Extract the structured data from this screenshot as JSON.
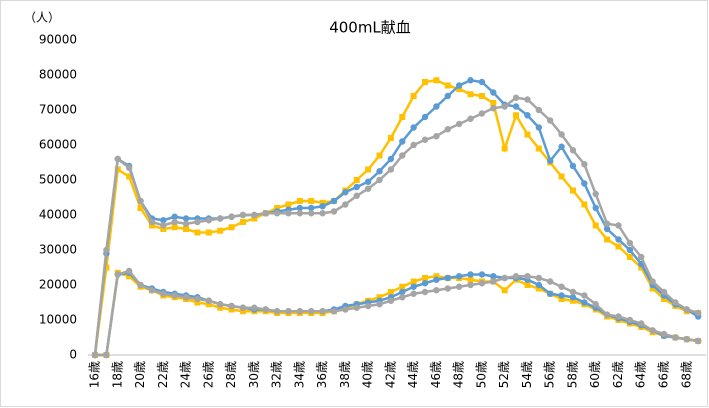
{
  "chart_data": {
    "type": "line",
    "title": "400mL献血",
    "y_label": "（人）",
    "categories": [
      "16歳",
      null,
      "18歳",
      null,
      "20歳",
      null,
      "22歳",
      null,
      "24歳",
      null,
      "26歳",
      null,
      "28歳",
      null,
      "30歳",
      null,
      "32歳",
      null,
      "34歳",
      null,
      "36歳",
      null,
      "38歳",
      null,
      "40歳",
      null,
      "42歳",
      null,
      "44歳",
      null,
      "46歳",
      null,
      "48歳",
      null,
      "50歳",
      null,
      "52歳",
      null,
      "54歳",
      null,
      "56歳",
      null,
      "58歳",
      null,
      "60歳",
      null,
      "62歳",
      null,
      "64歳",
      null,
      "66歳",
      null,
      "68歳",
      null
    ],
    "ylim": [
      0,
      90000
    ],
    "yticks": [
      0,
      10000,
      20000,
      30000,
      40000,
      50000,
      60000,
      70000,
      80000,
      90000
    ],
    "grid": false,
    "series": [
      {
        "color": "#FFC000",
        "marker": "square",
        "values": [
          0,
          25000,
          53000,
          51000,
          42000,
          37000,
          36000,
          36500,
          36000,
          35000,
          35000,
          35500,
          36500,
          38000,
          39000,
          40500,
          42000,
          43000,
          44000,
          44000,
          43500,
          44000,
          47000,
          50000,
          53000,
          57000,
          62000,
          68000,
          74000,
          78000,
          78500,
          77000,
          76000,
          74500,
          74000,
          72000,
          59000,
          68500,
          63000,
          59000,
          55000,
          51000,
          47000,
          43000,
          37000,
          33000,
          31000,
          28000,
          25000,
          19000,
          16000,
          14000,
          12500,
          12000
        ]
      },
      {
        "color": "#5B9BD5",
        "marker": "circle",
        "values": [
          0,
          29000,
          56000,
          54000,
          44000,
          39000,
          38500,
          39500,
          39000,
          39000,
          39000,
          39000,
          39500,
          40000,
          40000,
          40500,
          41000,
          41500,
          42000,
          42000,
          42500,
          44000,
          46500,
          48000,
          49500,
          52500,
          56000,
          61000,
          65000,
          68000,
          71000,
          74000,
          77000,
          78500,
          78000,
          75000,
          71500,
          71000,
          68500,
          65000,
          55500,
          59500,
          54000,
          49000,
          42000,
          36000,
          33000,
          30000,
          26000,
          20000,
          17000,
          14500,
          13000,
          11000
        ]
      },
      {
        "color": "#A5A5A5",
        "marker": "circle",
        "values": [
          0,
          30000,
          56000,
          53500,
          44000,
          38000,
          37000,
          38000,
          37500,
          38000,
          38500,
          39000,
          39500,
          40000,
          40000,
          40500,
          40500,
          40500,
          40500,
          40500,
          40500,
          41000,
          43000,
          45500,
          47500,
          50000,
          53000,
          57000,
          60000,
          61500,
          62500,
          64500,
          66000,
          67500,
          69000,
          70500,
          71000,
          73500,
          73000,
          70000,
          67000,
          63000,
          58500,
          54500,
          46000,
          37500,
          37000,
          32000,
          28000,
          21000,
          18000,
          15000,
          13000,
          12000
        ]
      },
      {
        "color": "#FFC000",
        "marker": "square",
        "values": [
          0,
          0,
          23500,
          22500,
          19500,
          18500,
          17000,
          16500,
          16000,
          15000,
          14500,
          13500,
          13000,
          12500,
          12500,
          12500,
          12000,
          12000,
          12000,
          12000,
          12000,
          12500,
          13500,
          14500,
          15500,
          16500,
          18000,
          19500,
          21000,
          22000,
          22500,
          22000,
          22000,
          21500,
          21000,
          21000,
          18500,
          21500,
          20000,
          19000,
          17500,
          16000,
          15500,
          14500,
          13000,
          11000,
          10000,
          9000,
          8000,
          6500,
          5500,
          5000,
          4500,
          4000
        ]
      },
      {
        "color": "#5B9BD5",
        "marker": "circle",
        "values": [
          0,
          0,
          23000,
          23500,
          20000,
          19000,
          18000,
          17500,
          17000,
          16500,
          15500,
          14500,
          14000,
          13500,
          13000,
          13000,
          12500,
          12500,
          12500,
          12500,
          12500,
          13000,
          14000,
          14500,
          15000,
          15500,
          16500,
          18000,
          19500,
          20500,
          21500,
          22000,
          22500,
          23000,
          23000,
          22500,
          22000,
          22000,
          21500,
          20000,
          17500,
          17000,
          16500,
          15000,
          13500,
          11500,
          10500,
          9500,
          8500,
          7000,
          5500,
          5000,
          4500,
          4000
        ]
      },
      {
        "color": "#A5A5A5",
        "marker": "circle",
        "values": [
          0,
          0,
          23000,
          24000,
          20000,
          18500,
          17500,
          17000,
          16500,
          16000,
          15500,
          14500,
          14000,
          13500,
          13500,
          13000,
          12500,
          12500,
          12500,
          12500,
          12500,
          12500,
          13000,
          13500,
          14000,
          14500,
          15500,
          16500,
          17500,
          18000,
          18500,
          19000,
          19500,
          20000,
          20500,
          21000,
          22000,
          22500,
          22500,
          22000,
          21000,
          19500,
          18000,
          17000,
          14500,
          11500,
          11000,
          10000,
          9000,
          7000,
          6000,
          5000,
          4500,
          4000
        ]
      }
    ]
  }
}
